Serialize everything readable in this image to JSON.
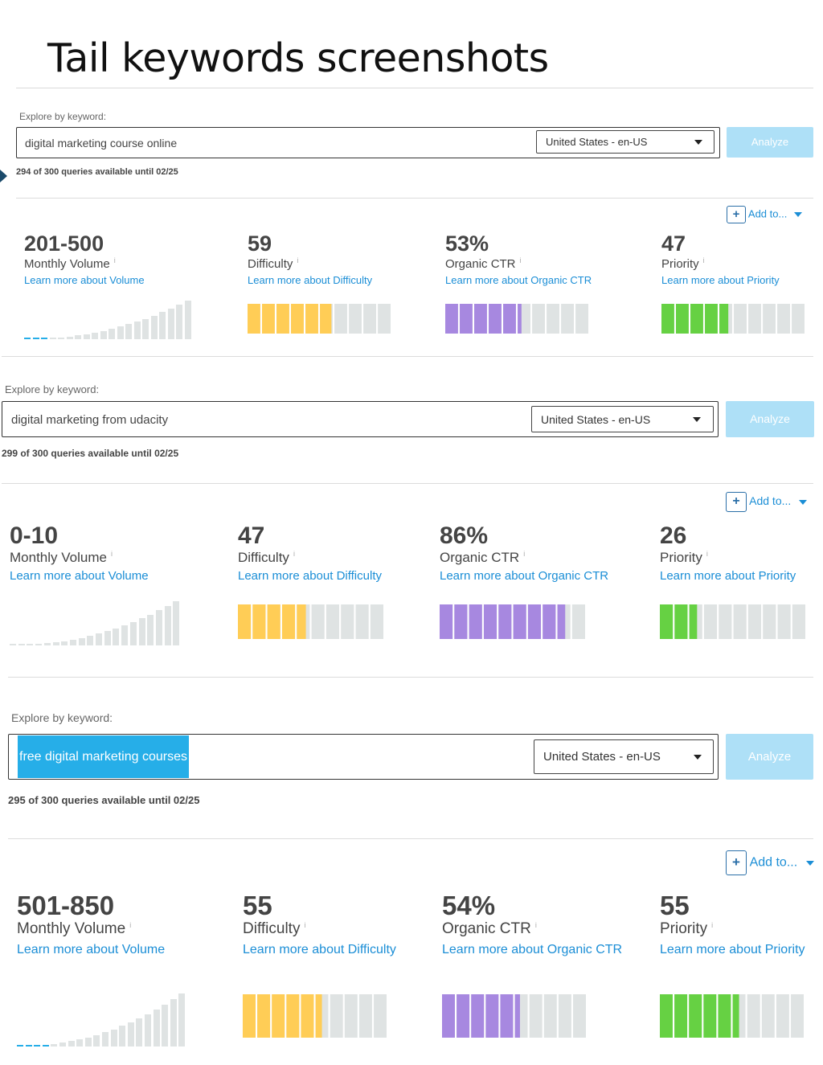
{
  "page_title": "Tail keywords screenshots",
  "shots": [
    {
      "explore_label": "Explore by keyword:",
      "keyword": "digital marketing course online",
      "keyword_selected": false,
      "locale": "United States - en-US",
      "analyze_label": "Analyze",
      "queries": "294 of 300 queries available until 02/25",
      "add_to_label": "Add to...",
      "metrics": {
        "volume": {
          "value": "201-500",
          "label": "Monthly Volume",
          "learn": "Learn more about Volume",
          "bars_highlighted": 3
        },
        "difficulty": {
          "value": "59",
          "label": "Difficulty",
          "learn": "Learn more about Difficulty",
          "score": 59
        },
        "ctr": {
          "value": "53%",
          "label": "Organic CTR",
          "learn": "Learn more about Organic CTR",
          "score": 53
        },
        "priority": {
          "value": "47",
          "label": "Priority",
          "learn": "Learn more about Priority",
          "score": 47
        }
      }
    },
    {
      "explore_label": "Explore by keyword:",
      "keyword": "digital marketing from udacity",
      "keyword_selected": false,
      "locale": "United States - en-US",
      "analyze_label": "Analyze",
      "queries": "299 of 300 queries available until 02/25",
      "add_to_label": "Add to...",
      "metrics": {
        "volume": {
          "value": "0-10",
          "label": "Monthly Volume",
          "learn": "Learn more about Volume",
          "bars_highlighted": 0
        },
        "difficulty": {
          "value": "47",
          "label": "Difficulty",
          "learn": "Learn more about Difficulty",
          "score": 47
        },
        "ctr": {
          "value": "86%",
          "label": "Organic CTR",
          "learn": "Learn more about Organic CTR",
          "score": 86
        },
        "priority": {
          "value": "26",
          "label": "Priority",
          "learn": "Learn more about Priority",
          "score": 26
        }
      }
    },
    {
      "explore_label": "Explore by keyword:",
      "keyword": "free digital marketing courses",
      "keyword_selected": true,
      "locale": "United States - en-US",
      "analyze_label": "Analyze",
      "queries": "295 of 300 queries available until 02/25",
      "add_to_label": "Add to...",
      "metrics": {
        "volume": {
          "value": "501-850",
          "label": "Monthly Volume",
          "learn": "Learn more about Volume",
          "bars_highlighted": 4
        },
        "difficulty": {
          "value": "55",
          "label": "Difficulty",
          "learn": "Learn more about Difficulty",
          "score": 55
        },
        "ctr": {
          "value": "54%",
          "label": "Organic CTR",
          "learn": "Learn more about Organic CTR",
          "score": 54
        },
        "priority": {
          "value": "55",
          "label": "Priority",
          "learn": "Learn more about Priority",
          "score": 55
        }
      }
    }
  ],
  "colors": {
    "difficulty": "#ffcd56",
    "ctr": "#a788e0",
    "priority": "#66d143",
    "empty": "#dfe3e3",
    "volume_highlight": "#26aee8",
    "link": "#1b8ed6",
    "analyze_bg": "#aee0f7"
  },
  "icons": {
    "add": "plus-box-icon",
    "dropdown": "caret-down-icon",
    "info": "info-icon"
  }
}
